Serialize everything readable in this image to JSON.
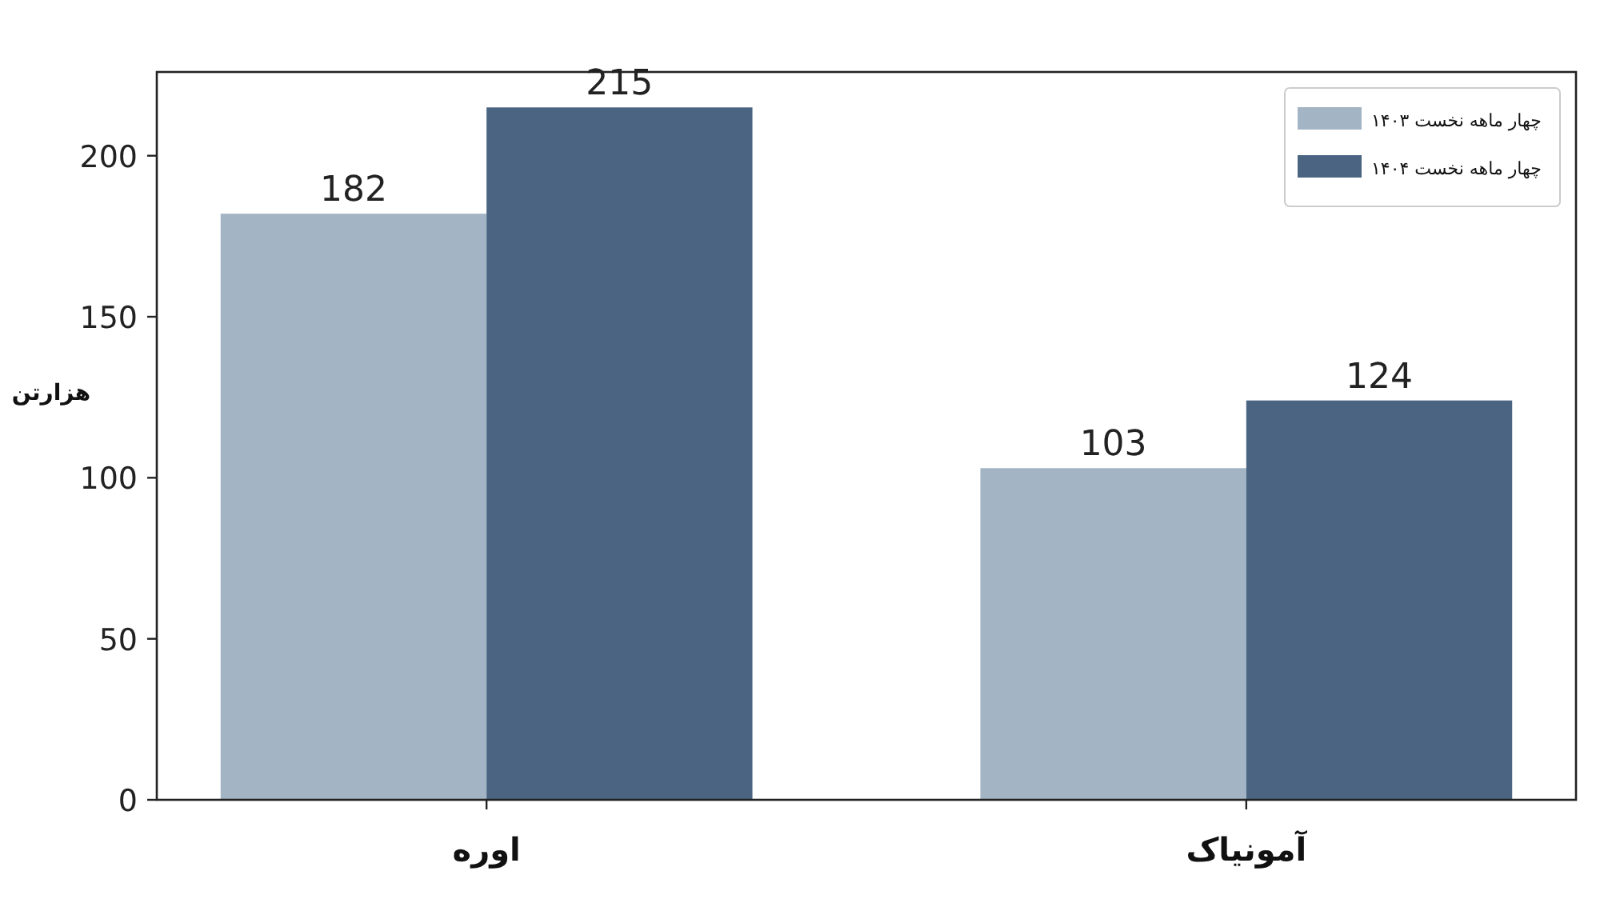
{
  "chart_data": {
    "type": "bar",
    "ylabel": "هزارتن",
    "categories": [
      "اوره",
      "آمونیاک"
    ],
    "series": [
      {
        "name": "چهار ماهه نخست ۱۴۰۳",
        "color": "#a3b4c4",
        "values": [
          182,
          103
        ]
      },
      {
        "name": "چهار ماهه نخست ۱۴۰۴",
        "color": "#4a6482",
        "values": [
          215,
          124
        ]
      }
    ],
    "ylim": [
      0,
      226
    ],
    "yticks": [
      0,
      50,
      100,
      150,
      200
    ],
    "data_labels": true,
    "legend": "top right",
    "grid": false
  }
}
